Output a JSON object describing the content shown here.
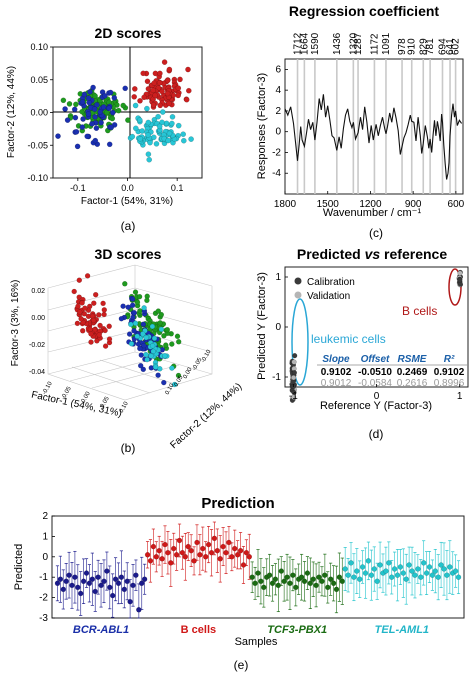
{
  "panels": {
    "a": {
      "label": "(a)",
      "chart_data": {
        "type": "scatter",
        "title": "2D scores",
        "xlabel": "Factor-1 (54%, 31%)",
        "ylabel": "Factor-2 (12%, 44%)",
        "xlim": [
          -0.15,
          0.15
        ],
        "ylim": [
          -0.1,
          0.1
        ],
        "xticks": [
          "-0.1",
          "0.0",
          "0.1"
        ],
        "yticks": [
          "0.10",
          "0.05",
          "0.00",
          "-0.05",
          "-0.10"
        ],
        "series": [
          {
            "color": "#cc1f1f",
            "cluster": {
              "cx": 0.07,
              "cy": 0.035,
              "sx": 0.032,
              "sy": 0.022,
              "n": 90
            }
          },
          {
            "color": "#1f9a1f",
            "cluster": {
              "cx": -0.06,
              "cy": 0.005,
              "sx": 0.035,
              "sy": 0.022,
              "n": 110
            }
          },
          {
            "color": "#1a2fb0",
            "cluster": {
              "cx": -0.07,
              "cy": 0.0,
              "sx": 0.04,
              "sy": 0.03,
              "n": 60
            }
          },
          {
            "color": "#28c6d6",
            "cluster": {
              "cx": 0.06,
              "cy": -0.03,
              "sx": 0.035,
              "sy": 0.02,
              "n": 80
            }
          }
        ]
      }
    },
    "b": {
      "label": "(b)",
      "chart_data": {
        "type": "scatter",
        "title": "3D scores",
        "xlabel": "Factor-1 (54%, 31%)",
        "ylabel": "Factor-2 (12%, 44%)",
        "zlabel": "Factor-3 (3%, 16%)",
        "zticks": [
          "0.02",
          "0.00",
          "-0.02",
          "-0.04"
        ],
        "xticks": [
          "-0.10",
          "-0.05",
          "0.00",
          "0.05",
          "0.10"
        ],
        "yticks": [
          "0.10",
          "0.05",
          "0.00",
          "-0.05",
          "-0.10"
        ]
      }
    },
    "c": {
      "label": "(c)",
      "chart_data": {
        "type": "line",
        "title": "Regression coefficient",
        "xlabel": "Wavenumber / cm⁻¹",
        "ylabel": "Responses (Factor-3)",
        "xlim": [
          1800,
          550
        ],
        "ylim": [
          -6,
          7
        ],
        "xticks": [
          "1800",
          "1500",
          "1200",
          "900",
          "600"
        ],
        "yticks": [
          "6",
          "4",
          "2",
          "0",
          "-2",
          "-4"
        ],
        "annotations": [
          "1712",
          "1664",
          "1590",
          "1436",
          "1320",
          "1287",
          "1172",
          "1091",
          "978",
          "910",
          "829",
          "781",
          "694",
          "641",
          "602"
        ],
        "annotation_values": [
          1712,
          1664,
          1590,
          1436,
          1320,
          1287,
          1172,
          1091,
          978,
          910,
          829,
          781,
          694,
          641,
          602
        ],
        "series": [
          {
            "x": [
              1800,
              1780,
              1760,
              1740,
              1720,
              1712,
              1700,
              1690,
              1680,
              1664,
              1650,
              1635,
              1620,
              1605,
              1590,
              1575,
              1560,
              1545,
              1530,
              1515,
              1500,
              1485,
              1470,
              1455,
              1436,
              1420,
              1405,
              1390,
              1375,
              1360,
              1345,
              1330,
              1320,
              1305,
              1287,
              1270,
              1255,
              1240,
              1225,
              1210,
              1195,
              1180,
              1172,
              1160,
              1145,
              1130,
              1115,
              1100,
              1091,
              1080,
              1065,
              1050,
              1035,
              1020,
              1005,
              990,
              978,
              965,
              950,
              935,
              920,
              910,
              895,
              880,
              865,
              850,
              840,
              829,
              815,
              800,
              790,
              781,
              770,
              760,
              750,
              740,
              730,
              720,
              710,
              700,
              694,
              685,
              675,
              665,
              655,
              648,
              641,
              630,
              620,
              610,
              602,
              590,
              575,
              560
            ],
            "y": [
              2.2,
              1.6,
              2.4,
              0.8,
              -1.8,
              -2.8,
              -1.2,
              0.5,
              -0.8,
              -1.4,
              -0.2,
              1.2,
              0.2,
              0.9,
              -0.8,
              0.9,
              3.2,
              2.1,
              3.6,
              1.4,
              2.5,
              1.1,
              -0.4,
              -0.6,
              -1.8,
              -0.5,
              -1.6,
              0.3,
              1.6,
              2.2,
              1.0,
              0.4,
              0.9,
              -0.7,
              -0.1,
              1.4,
              0.2,
              2.4,
              0.9,
              -1.1,
              0.6,
              -0.8,
              -0.2,
              0.7,
              -0.4,
              0.6,
              1.4,
              0.3,
              -0.2,
              0.5,
              1.8,
              0.9,
              2.3,
              1.3,
              0.1,
              -2.2,
              -1.4,
              -0.6,
              -0.1,
              0.7,
              1.6,
              1.0,
              0.9,
              -0.9,
              1.4,
              -0.4,
              -2.1,
              -1.1,
              0.6,
              -0.5,
              -1.6,
              -0.7,
              -2.0,
              -0.3,
              1.1,
              -0.4,
              1.0,
              0.2,
              -0.9,
              1.7,
              0.9,
              -1.3,
              -3.1,
              -4.6,
              -4.0,
              -3.0,
              -0.4,
              1.6,
              2.7,
              1.4,
              2.0,
              0.6,
              1.1,
              0.8
            ]
          }
        ]
      }
    },
    "d": {
      "label": "(d)",
      "chart_data": {
        "type": "scatter",
        "title": "Predicted vs reference",
        "title_parts": [
          "Predicted ",
          "vs",
          " reference"
        ],
        "xlabel": "Reference Y (Factor-3)",
        "ylabel": "Predicted Y (Factor-3)",
        "xlim": [
          -1.1,
          1.1
        ],
        "ylim": [
          -1.2,
          1.2
        ],
        "xticks": [
          "-1",
          "0",
          "1"
        ],
        "yticks": [
          "1",
          "0",
          "-1"
        ],
        "series": [
          {
            "name": "Calibration",
            "color": "#3a3a3a"
          },
          {
            "name": "Validation",
            "color": "#b5b5b5"
          }
        ],
        "group_labels": [
          {
            "text": "leukemic cells",
            "color": "#2aa7d6"
          },
          {
            "text": "B cells",
            "color": "#b01818"
          }
        ],
        "table": {
          "headers": [
            "Slope",
            "Offset",
            "RSME",
            "R²"
          ],
          "rows": [
            [
              "0.9102",
              "-0.0510",
              "0.2469",
              "0.9102"
            ],
            [
              "0.9012",
              "-0.0584",
              "0.2616",
              "0.8996"
            ]
          ]
        }
      }
    },
    "e": {
      "label": "(e)",
      "chart_data": {
        "type": "scatter",
        "title": "Prediction",
        "xlabel": "Samples",
        "ylabel": "Predicted",
        "ylim": [
          -3,
          2
        ],
        "yticks": [
          "2",
          "1",
          "0",
          "-1",
          "-2",
          "-3"
        ],
        "groups": [
          {
            "name": "BCR-ABL1",
            "color": "#1a1a8c",
            "label_color": "#1a2fa8",
            "italic": true,
            "n": 31,
            "mean": -1.25,
            "err": 1.0,
            "values": [
              -1.3,
              -1.1,
              -1.6,
              -1.2,
              -0.9,
              -1.4,
              -1.0,
              -1.5,
              -1.8,
              -1.2,
              -0.8,
              -1.3,
              -1.1,
              -1.7,
              -1.0,
              -1.4,
              -1.2,
              -0.7,
              -1.5,
              -1.9,
              -1.1,
              -1.3,
              -1.0,
              -1.6,
              -1.2,
              -2.2,
              -1.4,
              -0.9,
              -2.6,
              -1.3,
              -1.1
            ]
          },
          {
            "name": "B cells",
            "color": "#d01818",
            "label_color": "#d01818",
            "italic": false,
            "n": 36,
            "mean": 0.1,
            "err": 0.9,
            "values": [
              0.1,
              -0.2,
              0.5,
              0.0,
              0.3,
              -0.1,
              0.6,
              0.2,
              -0.3,
              0.4,
              0.1,
              0.8,
              0.2,
              0.0,
              0.5,
              0.3,
              -0.2,
              0.7,
              0.1,
              0.4,
              0.0,
              0.6,
              0.2,
              0.9,
              0.3,
              -0.1,
              0.5,
              0.2,
              0.7,
              0.0,
              0.4,
              0.1,
              0.3,
              -0.4,
              0.2,
              0.0
            ]
          },
          {
            "name": "TCF3-PBX1",
            "color": "#1a6b12",
            "label_color": "#1a6b12",
            "italic": true,
            "n": 32,
            "mean": -1.1,
            "err": 1.0,
            "values": [
              -1.0,
              -1.3,
              -0.8,
              -1.2,
              -1.5,
              -1.0,
              -0.9,
              -1.3,
              -1.1,
              -1.4,
              -0.7,
              -1.2,
              -1.0,
              -1.3,
              -0.9,
              -1.5,
              -1.1,
              -1.0,
              -1.2,
              -0.8,
              -1.3,
              -1.1,
              -1.4,
              -1.0,
              -1.2,
              -0.9,
              -1.5,
              -1.1,
              -1.3,
              -1.6,
              -1.0,
              -1.2
            ]
          },
          {
            "name": "TEL-AML1",
            "color": "#22c4cc",
            "label_color": "#22b5c8",
            "italic": true,
            "n": 40,
            "mean": -0.8,
            "err": 1.0,
            "values": [
              -0.6,
              -0.9,
              -0.3,
              -1.0,
              -0.7,
              -1.1,
              -0.5,
              -0.8,
              -0.2,
              -0.9,
              -0.6,
              -1.2,
              -0.4,
              -0.8,
              -0.7,
              -0.3,
              -1.0,
              -0.6,
              -0.9,
              -0.5,
              -0.8,
              -1.1,
              -0.4,
              -0.7,
              -0.9,
              -0.6,
              -1.0,
              -0.3,
              -0.8,
              -0.5,
              -0.9,
              -0.7,
              -1.0,
              -0.4,
              -0.6,
              -0.9,
              -0.5,
              -0.8,
              -0.7,
              -1.0
            ]
          }
        ]
      }
    }
  }
}
